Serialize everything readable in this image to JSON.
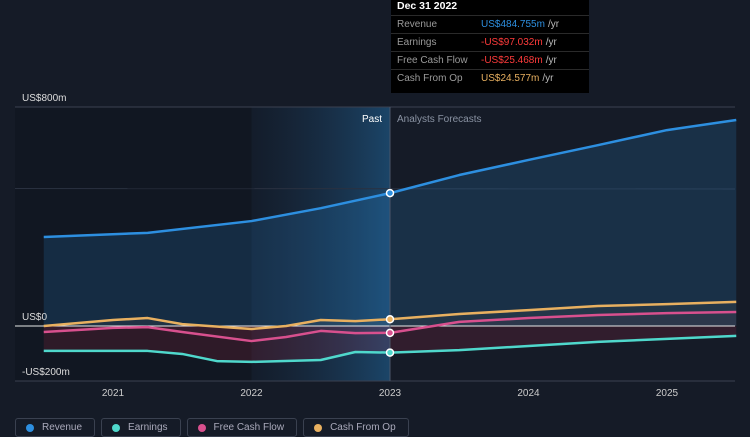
{
  "chart_data": {
    "type": "line",
    "x_ticks": [
      "2021",
      "2022",
      "2023",
      "2024",
      "2025"
    ],
    "y_ticks": [
      {
        "value": 800,
        "label": "US$800m"
      },
      {
        "value": 0,
        "label": "US$0"
      },
      {
        "value": -200,
        "label": "-US$200m"
      }
    ],
    "ylim": [
      -200,
      800
    ],
    "xlim": [
      2020.3,
      2025.5
    ],
    "past_label": "Past",
    "forecast_label": "Analysts Forecasts",
    "divider_x": 2023,
    "highlight_range": [
      2022,
      2023
    ],
    "series": [
      {
        "name": "Revenue",
        "color": "#2d8fe0",
        "x": [
          2020.5,
          2021.25,
          2022,
          2022.5,
          2023,
          2023.5,
          2024,
          2024.5,
          2025,
          2025.5
        ],
        "values": [
          325,
          340,
          383,
          430,
          485,
          551,
          606,
          660,
          715,
          752
        ]
      },
      {
        "name": "Earnings",
        "color": "#4fd8cc",
        "x": [
          2020.5,
          2021.25,
          2021.5,
          2021.75,
          2022,
          2022.5,
          2022.75,
          2023,
          2023.5,
          2024,
          2024.5,
          2025,
          2025.5
        ],
        "values": [
          -91,
          -91,
          -102,
          -128,
          -131,
          -124,
          -95,
          -97,
          -88,
          -73,
          -58,
          -47,
          -36
        ]
      },
      {
        "name": "Free Cash Flow",
        "color": "#d8508e",
        "x": [
          2020.5,
          2021,
          2021.25,
          2021.5,
          2022,
          2022.25,
          2022.5,
          2022.75,
          2023,
          2023.5,
          2024,
          2024.5,
          2025,
          2025.5
        ],
        "values": [
          -22,
          -7,
          -4,
          -22,
          -55,
          -40,
          -18,
          -26,
          -25,
          15,
          29,
          40,
          47,
          51
        ]
      },
      {
        "name": "Cash From Op",
        "color": "#e8b060",
        "x": [
          2020.5,
          2021,
          2021.25,
          2021.5,
          2022,
          2022.25,
          2022.5,
          2022.75,
          2023,
          2023.5,
          2024,
          2024.5,
          2025,
          2025.5
        ],
        "values": [
          0,
          22,
          29,
          7,
          -11,
          0,
          22,
          18,
          24.6,
          44,
          58,
          73,
          80,
          88
        ]
      }
    ]
  },
  "tooltip": {
    "date": "Dec 31 2022",
    "unit": "/yr",
    "rows": [
      {
        "label": "Revenue",
        "value": "US$484.755m",
        "color": "#2d8fe0"
      },
      {
        "label": "Earnings",
        "value": "-US$97.032m",
        "color": "#ff3b3b"
      },
      {
        "label": "Free Cash Flow",
        "value": "-US$25.468m",
        "color": "#ff3b3b"
      },
      {
        "label": "Cash From Op",
        "value": "US$24.577m",
        "color": "#e8b060"
      }
    ]
  },
  "legend": [
    "Revenue",
    "Earnings",
    "Free Cash Flow",
    "Cash From Op"
  ]
}
